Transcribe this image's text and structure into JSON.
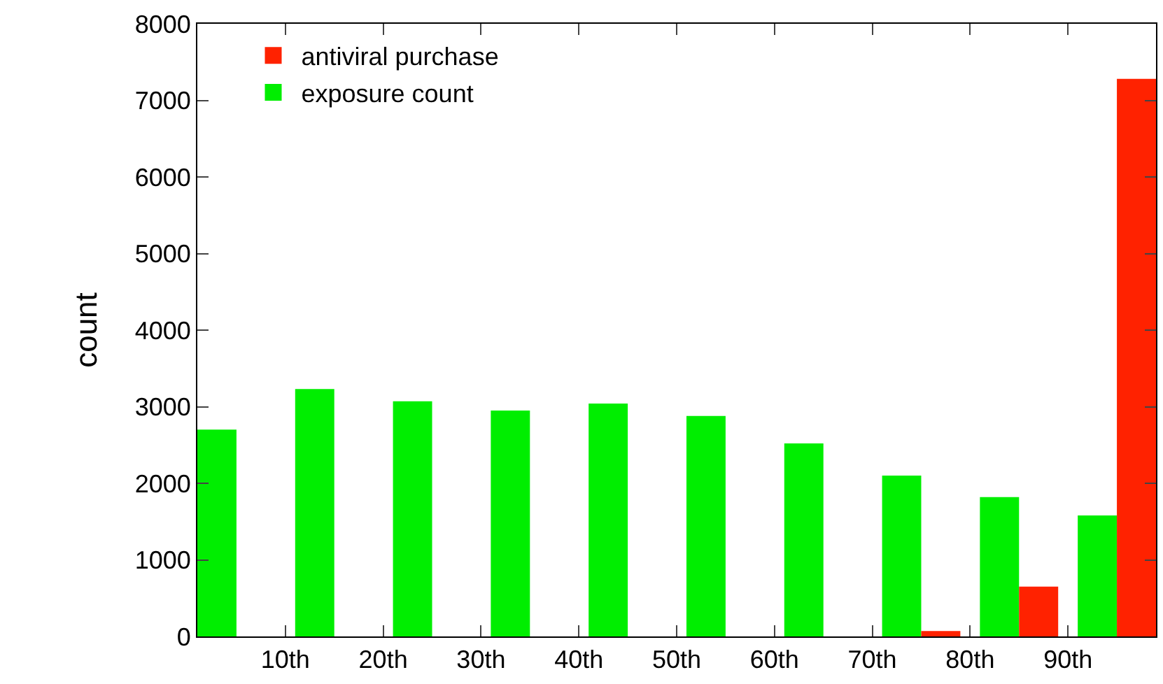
{
  "chart_data": {
    "type": "bar",
    "ylabel": "count",
    "x": [
      5,
      15,
      25,
      35,
      45,
      55,
      65,
      75,
      85,
      95
    ],
    "series": [
      {
        "name": "exposure count",
        "color": "#00ee00",
        "values": [
          2700,
          3230,
          3070,
          2950,
          3040,
          2880,
          2520,
          2100,
          1820,
          1580
        ]
      },
      {
        "name": "antiviral purchase",
        "color": "#ff2200",
        "values": [
          0,
          0,
          0,
          0,
          0,
          0,
          0,
          70,
          650,
          7280
        ]
      }
    ],
    "xlim": [
      1,
      99
    ],
    "xticks": [
      {
        "value": 10,
        "label": "10th"
      },
      {
        "value": 20,
        "label": "20th"
      },
      {
        "value": 30,
        "label": "30th"
      },
      {
        "value": 40,
        "label": "40th"
      },
      {
        "value": 50,
        "label": "50th"
      },
      {
        "value": 60,
        "label": "60th"
      },
      {
        "value": 70,
        "label": "70th"
      },
      {
        "value": 80,
        "label": "80th"
      },
      {
        "value": 90,
        "label": "90th"
      }
    ],
    "ylim": [
      0,
      8000
    ],
    "yticks": [
      0,
      1000,
      2000,
      3000,
      4000,
      5000,
      6000,
      7000,
      8000
    ],
    "legend": "top left"
  }
}
